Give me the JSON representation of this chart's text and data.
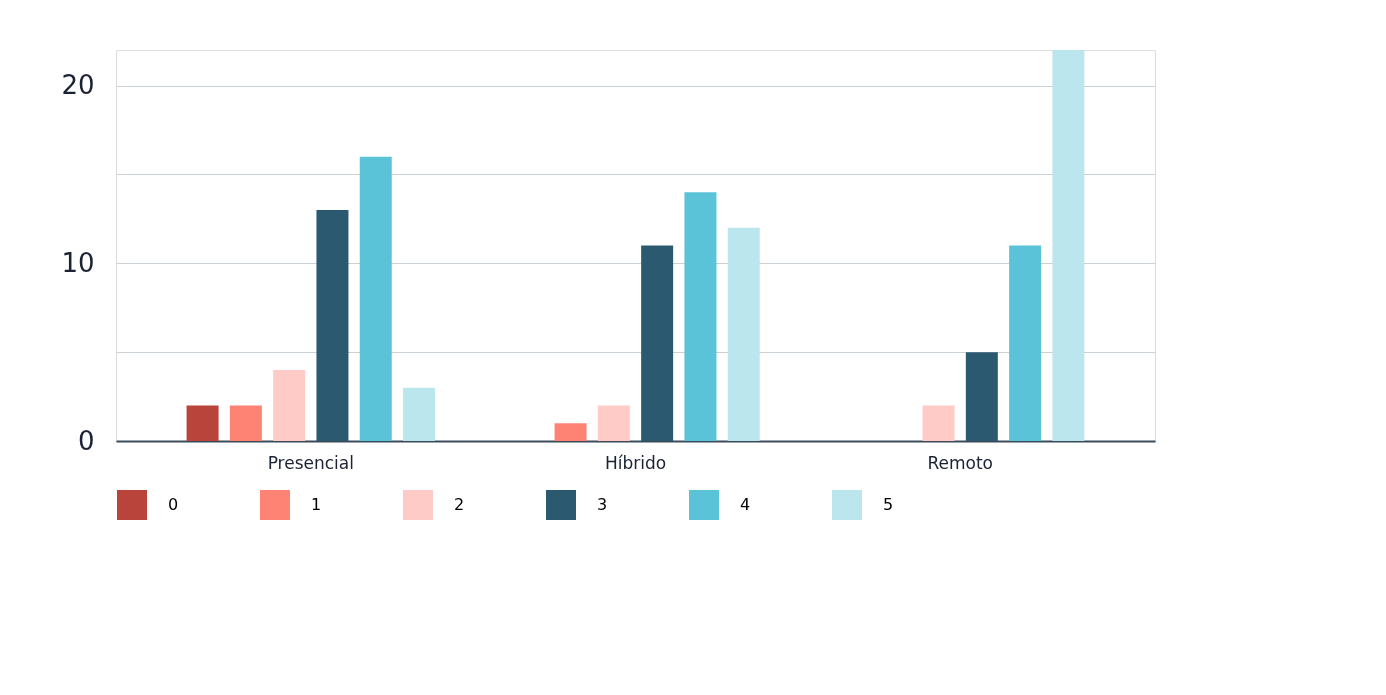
{
  "chart_data": {
    "type": "bar",
    "categories": [
      "Presencial",
      "Híbrido",
      "Remoto"
    ],
    "series": [
      {
        "name": "0",
        "color": "#b9443b",
        "values": [
          2,
          0,
          0
        ]
      },
      {
        "name": "1",
        "color": "#ff8375",
        "values": [
          2,
          1,
          0
        ]
      },
      {
        "name": "2",
        "color": "#ffcbc6",
        "values": [
          4,
          2,
          2
        ]
      },
      {
        "name": "3",
        "color": "#2b5a70",
        "values": [
          13,
          11,
          5
        ]
      },
      {
        "name": "4",
        "color": "#5bc3d8",
        "values": [
          16,
          14,
          11
        ]
      },
      {
        "name": "5",
        "color": "#bce6ed",
        "values": [
          3,
          12,
          22
        ]
      }
    ],
    "ylim": [
      0,
      22
    ],
    "yticks": [
      0,
      {
        "value": 5,
        "label": null
      },
      10,
      {
        "value": 15,
        "label": null
      },
      20
    ],
    "grid": "y",
    "legend": "bottom"
  }
}
